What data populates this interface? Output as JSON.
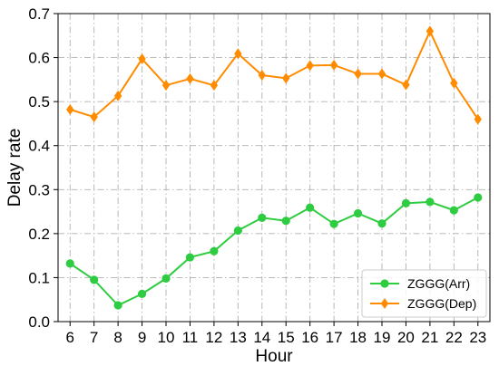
{
  "chart_data": {
    "type": "line",
    "xlabel": "Hour",
    "ylabel": "Delay rate",
    "x": [
      6,
      7,
      8,
      9,
      10,
      11,
      12,
      13,
      14,
      15,
      16,
      17,
      18,
      19,
      20,
      21,
      22,
      23
    ],
    "xlim": [
      5.5,
      23.5
    ],
    "ylim": [
      0.0,
      0.7
    ],
    "yticks": [
      0.0,
      0.1,
      0.2,
      0.3,
      0.4,
      0.5,
      0.6,
      0.7
    ],
    "ytick_labels": [
      "0.0",
      "0.1",
      "0.2",
      "0.3",
      "0.4",
      "0.5",
      "0.6",
      "0.7"
    ],
    "xtick_labels": [
      "6",
      "7",
      "8",
      "9",
      "10",
      "11",
      "12",
      "13",
      "14",
      "15",
      "16",
      "17",
      "18",
      "19",
      "20",
      "21",
      "22",
      "23"
    ],
    "grid": true,
    "legend_position": "lower-right",
    "series": [
      {
        "name": "ZGGG(Arr)",
        "marker": "circle",
        "color": "#2ecc40",
        "values": [
          0.132,
          0.095,
          0.037,
          0.063,
          0.098,
          0.146,
          0.16,
          0.207,
          0.236,
          0.229,
          0.259,
          0.222,
          0.246,
          0.223,
          0.269,
          0.272,
          0.253,
          0.282
        ]
      },
      {
        "name": "ZGGG(Dep)",
        "marker": "diamond",
        "color": "#ff8c00",
        "values": [
          0.482,
          0.465,
          0.513,
          0.597,
          0.537,
          0.552,
          0.537,
          0.609,
          0.56,
          0.553,
          0.582,
          0.583,
          0.563,
          0.563,
          0.538,
          0.66,
          0.542,
          0.46
        ]
      }
    ]
  }
}
